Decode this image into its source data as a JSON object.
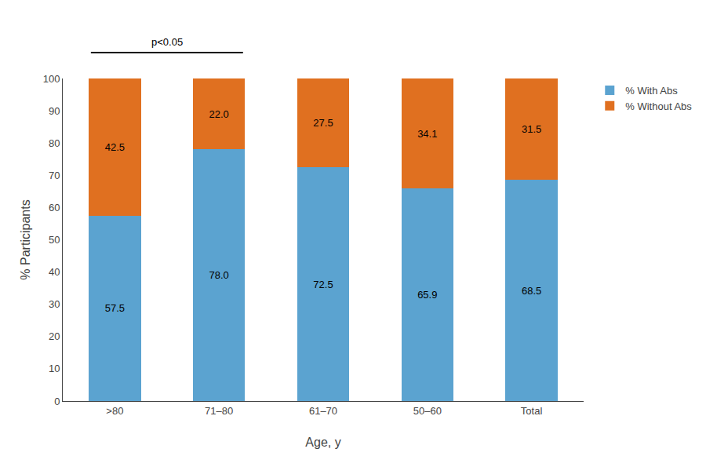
{
  "chart_data": {
    "type": "bar",
    "stacked": true,
    "categories": [
      ">80",
      "71–80",
      "61–70",
      "50–60",
      "Total"
    ],
    "series": [
      {
        "name": "% With Abs",
        "color": "#5BA3D0",
        "values": [
          57.5,
          78.0,
          72.5,
          65.9,
          68.5
        ],
        "value_labels": [
          "57.5",
          "78.0",
          "72.5",
          "65.9",
          "68.5"
        ]
      },
      {
        "name": "% Without Abs",
        "color": "#E07020",
        "values": [
          42.5,
          22.0,
          27.5,
          34.1,
          31.5
        ],
        "value_labels": [
          "42.5",
          "22.0",
          "27.5",
          "34.1",
          "31.5"
        ]
      }
    ],
    "xlabel": "Age, y",
    "ylabel": "% Participants",
    "ylim": [
      0,
      100
    ],
    "yticks": [
      0,
      10,
      20,
      30,
      40,
      50,
      60,
      70,
      80,
      90,
      100
    ],
    "grid": false,
    "legend": "upper right",
    "data_labels": true,
    "annotations": [
      {
        "text": "p<0.05",
        "from": ">80",
        "to": "71–80"
      }
    ]
  }
}
